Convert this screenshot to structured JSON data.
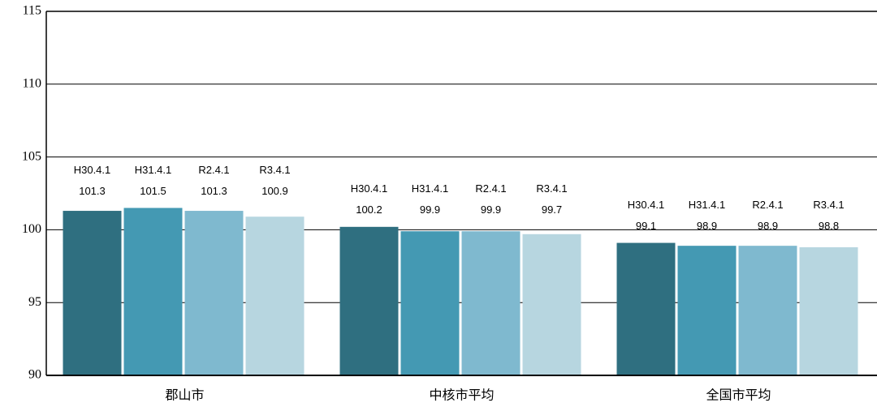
{
  "chart_data": {
    "type": "bar",
    "categories": [
      "郡山市",
      "中核市平均",
      "全国市平均"
    ],
    "series": [
      {
        "name": "H30.4.1",
        "color": "#2f6f80",
        "values": [
          101.3,
          100.2,
          99.1
        ]
      },
      {
        "name": "H31.4.1",
        "color": "#4499b3",
        "values": [
          101.5,
          99.9,
          98.9
        ]
      },
      {
        "name": "R2.4.1",
        "color": "#7fb9cf",
        "values": [
          101.3,
          99.9,
          98.9
        ]
      },
      {
        "name": "R3.4.1",
        "color": "#b7d6e0",
        "values": [
          100.9,
          99.7,
          98.8
        ]
      }
    ],
    "ylim": [
      90,
      115
    ],
    "yticks": [
      90,
      95,
      100,
      105,
      110,
      115
    ],
    "grid": true
  }
}
